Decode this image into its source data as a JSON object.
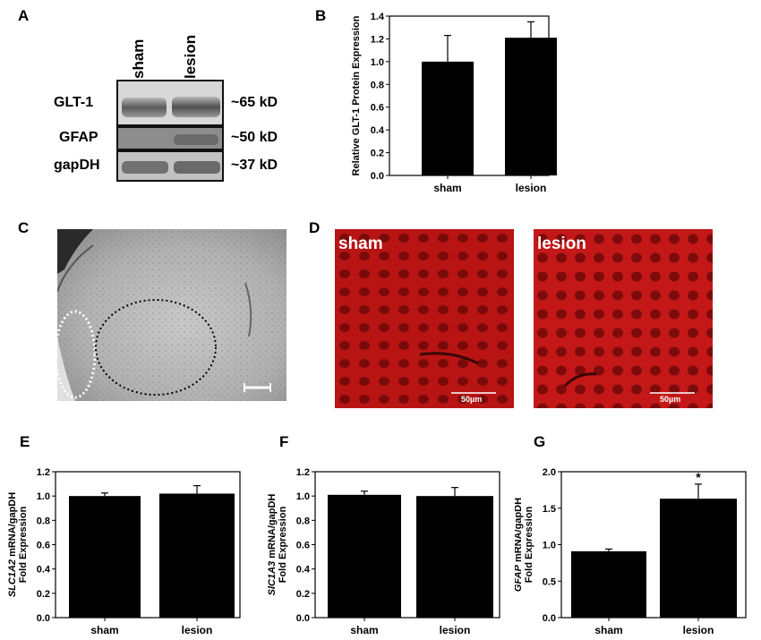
{
  "panels": {
    "A": {
      "letter": "A",
      "lanes": [
        "sham",
        "lesion"
      ],
      "bands": [
        {
          "name": "GLT-1",
          "size": "~65 kD"
        },
        {
          "name": "GFAP",
          "size": "~50 kD"
        },
        {
          "name": "gapDH",
          "size": "~37 kD"
        }
      ]
    },
    "C": {
      "letter": "C"
    },
    "D": {
      "letter": "D",
      "images": [
        {
          "label": "sham",
          "scale": "50µm"
        },
        {
          "label": "lesion",
          "scale": "50µm"
        }
      ]
    }
  },
  "chart_data": [
    {
      "id": "B",
      "letter": "B",
      "type": "bar",
      "categories": [
        "sham",
        "lesion"
      ],
      "values": [
        1.0,
        1.21
      ],
      "errors": [
        0.23,
        0.14
      ],
      "ylabel": "Relative GLT-1 Protein Expression",
      "ylim": [
        0,
        1.4
      ],
      "yticks": [
        "0.0",
        "0.2",
        "0.4",
        "0.6",
        "0.8",
        "1.0",
        "1.2",
        "1.4"
      ],
      "annotations": []
    },
    {
      "id": "E",
      "letter": "E",
      "type": "bar",
      "categories": [
        "sham",
        "lesion"
      ],
      "values": [
        1.0,
        1.02
      ],
      "errors": [
        0.025,
        0.065
      ],
      "ylabel_gene": "SLC1A2",
      "ylabel_rest": " mRNA/gapDH",
      "ylabel2": "Fold Expression",
      "ylim": [
        0,
        1.2
      ],
      "yticks": [
        "0.0",
        "0.2",
        "0.4",
        "0.6",
        "0.8",
        "1.0",
        "1.2"
      ],
      "annotations": []
    },
    {
      "id": "F",
      "letter": "F",
      "type": "bar",
      "categories": [
        "sham",
        "lesion"
      ],
      "values": [
        1.01,
        1.0
      ],
      "errors": [
        0.03,
        0.07
      ],
      "ylabel_gene": "SlC1A3",
      "ylabel_rest": " mRNA/gapDH",
      "ylabel2": "Fold Expression",
      "ylim": [
        0,
        1.2
      ],
      "yticks": [
        "0.0",
        "0.2",
        "0.4",
        "0.6",
        "0.8",
        "1.0",
        "1.2"
      ],
      "annotations": []
    },
    {
      "id": "G",
      "letter": "G",
      "type": "bar",
      "categories": [
        "sham",
        "lesion"
      ],
      "values": [
        0.91,
        1.63
      ],
      "errors": [
        0.03,
        0.2
      ],
      "ylabel_gene": "GFAP",
      "ylabel_rest": " mRNA/gapDH",
      "ylabel2": "Fold Expression",
      "ylim": [
        0,
        2.0
      ],
      "yticks": [
        "0.0",
        "0.5",
        "1.0",
        "1.5",
        "2.0"
      ],
      "annotations": [
        {
          "category": "lesion",
          "text": "*"
        }
      ]
    }
  ]
}
